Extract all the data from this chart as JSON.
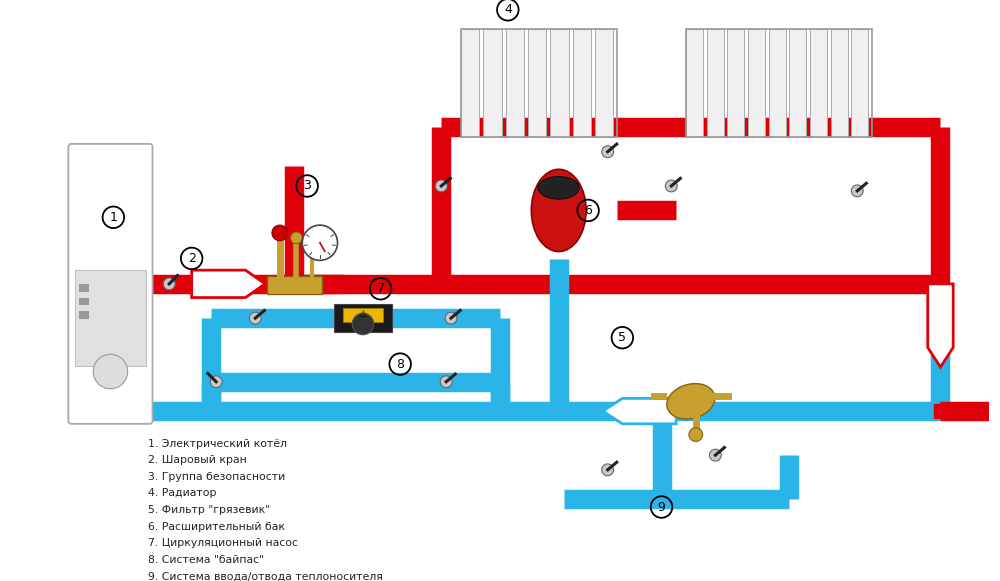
{
  "bg_color": "#ffffff",
  "pipe_red": "#e0000a",
  "pipe_blue": "#2ab4e8",
  "pipe_lw": 14,
  "text_color": "#222222",
  "legend_items": [
    "1. Электрический котёл",
    "2. Шаровый кран",
    "3. Группа безопасности",
    "4. Радиатор",
    "5. Фильтр \"грязевик\"",
    "6. Расширительный бак",
    "7. Циркуляционный насос",
    "8. Система \"байпас\"",
    "9. Система ввода/отвода теплоносителя"
  ]
}
